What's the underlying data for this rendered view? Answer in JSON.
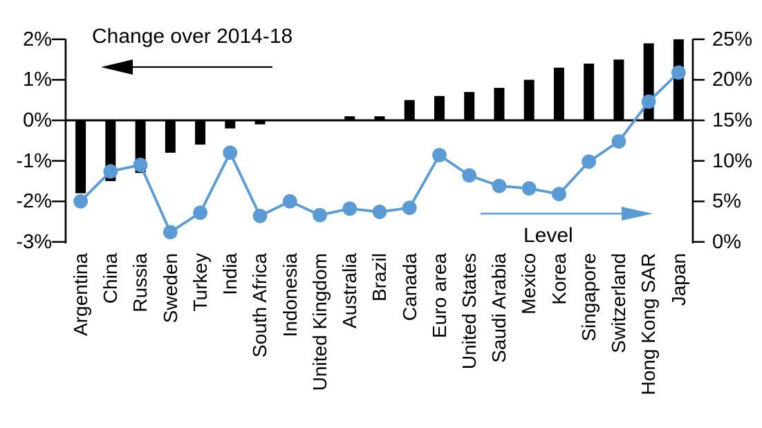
{
  "chart_data": {
    "type": "combo-bar-line",
    "title": "",
    "categories": [
      "Argentina",
      "China",
      "Russia",
      "Sweden",
      "Turkey",
      "India",
      "South Africa",
      "Indonesia",
      "United Kingdom",
      "Australia",
      "Brazil",
      "Canada",
      "Euro area",
      "United States",
      "Saudi Arabia",
      "Mexico",
      "Korea",
      "Singapore",
      "Switzerland",
      "Hong Kong SAR",
      "Japan"
    ],
    "series": [
      {
        "name": "Change over 2014-18",
        "type": "bar",
        "axis": "left",
        "color": "#000000",
        "unit": "%",
        "values": [
          -1.8,
          -1.5,
          -1.3,
          -0.8,
          -0.6,
          -0.2,
          -0.1,
          0,
          0,
          0.1,
          0.1,
          0.5,
          0.6,
          0.7,
          0.8,
          1.0,
          1.3,
          1.4,
          1.5,
          1.9,
          2.0
        ]
      },
      {
        "name": "Level",
        "type": "line",
        "axis": "right",
        "color": "#5B9BD5",
        "unit": "%",
        "values": [
          5.0,
          8.7,
          9.5,
          1.2,
          3.6,
          11.0,
          3.2,
          5.0,
          3.3,
          4.1,
          3.7,
          4.2,
          10.7,
          8.2,
          6.9,
          6.6,
          5.9,
          9.9,
          12.4,
          17.3,
          20.9
        ]
      }
    ],
    "left_axis": {
      "min": -3,
      "max": 2,
      "tick_labels": [
        "2%",
        "1%",
        "0%",
        "-1%",
        "-2%",
        "-3%"
      ],
      "tick_values": [
        2,
        1,
        0,
        -1,
        -2,
        -3
      ]
    },
    "right_axis": {
      "min": 0,
      "max": 25,
      "tick_labels": [
        "25%",
        "20%",
        "15%",
        "10%",
        "5%",
        "0%"
      ],
      "tick_values": [
        25,
        20,
        15,
        10,
        5,
        0
      ]
    },
    "grid": false,
    "legend_position": "none",
    "annotations": [
      {
        "text": "Change over 2014-18",
        "series": "bar",
        "arrow_direction": "left",
        "color": "#000000"
      },
      {
        "text": "Level",
        "series": "line",
        "arrow_direction": "right",
        "color": "#5B9BD5"
      }
    ]
  }
}
